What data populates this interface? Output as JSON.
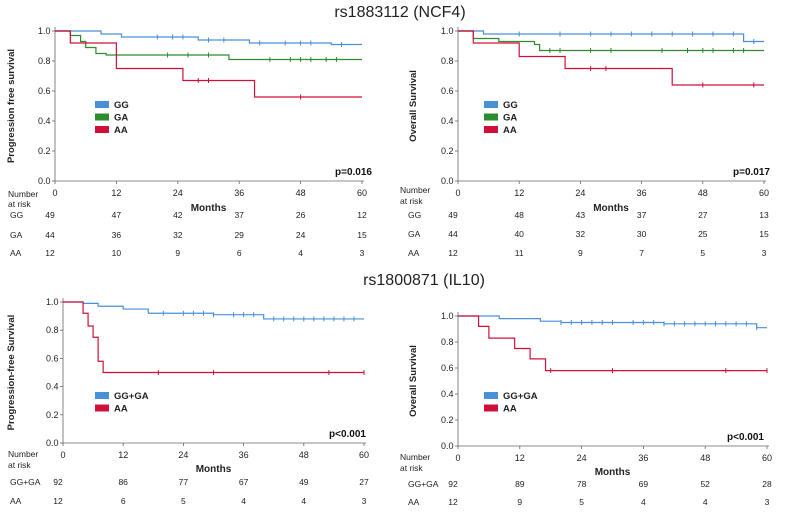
{
  "titles": {
    "top": "rs1883112 (NCF4)",
    "bottom": "rs1800871 (IL10)"
  },
  "colors": {
    "GG": "#4a90d9",
    "GA": "#2e8b2e",
    "AA": "#d0103a",
    "GGGA": "#4a90d9"
  },
  "chart_data": [
    {
      "type": "line",
      "panel": "top-left",
      "ylabel": "Progression free survival",
      "xlabel": "Months",
      "xticks": [
        0,
        12,
        24,
        36,
        48,
        60
      ],
      "yticks": [
        "0.0",
        "0.2",
        "0.4",
        "0.6",
        "0.8",
        "1.0"
      ],
      "xlim": [
        0,
        60
      ],
      "ylim": [
        0,
        1
      ],
      "p_value": "p=0.016",
      "risk_header": [
        "Number",
        "at risk"
      ],
      "series": [
        {
          "name": "GG",
          "color_key": "GG",
          "steps": [
            [
              0,
              1.0
            ],
            [
              9,
              0.98
            ],
            [
              13,
              0.96
            ],
            [
              28,
              0.94
            ],
            [
              38,
              0.92
            ],
            [
              54,
              0.91
            ],
            [
              60,
              0.91
            ]
          ],
          "censor": [
            20,
            23,
            25,
            30,
            33,
            40,
            45,
            48,
            50,
            56
          ]
        },
        {
          "name": "GA",
          "color_key": "GA",
          "steps": [
            [
              0,
              1.0
            ],
            [
              3,
              0.97
            ],
            [
              5,
              0.93
            ],
            [
              6,
              0.89
            ],
            [
              8,
              0.85
            ],
            [
              10,
              0.84
            ],
            [
              34,
              0.81
            ],
            [
              60,
              0.81
            ]
          ],
          "censor": [
            22,
            26,
            30,
            42,
            46,
            48,
            50,
            53,
            55
          ]
        },
        {
          "name": "AA",
          "color_key": "AA",
          "steps": [
            [
              0,
              1.0
            ],
            [
              3,
              0.92
            ],
            [
              12,
              0.75
            ],
            [
              25,
              0.67
            ],
            [
              39,
              0.56
            ],
            [
              60,
              0.56
            ]
          ],
          "censor": [
            28,
            30,
            48
          ]
        }
      ],
      "risk_table": [
        {
          "label": "GG",
          "values": [
            "49",
            "47",
            "42",
            "37",
            "26",
            "12"
          ]
        },
        {
          "label": "GA",
          "values": [
            "44",
            "36",
            "32",
            "29",
            "24",
            "15"
          ]
        },
        {
          "label": "AA",
          "values": [
            "12",
            "10",
            "9",
            "6",
            "4",
            "3"
          ]
        }
      ]
    },
    {
      "type": "line",
      "panel": "top-right",
      "ylabel": "Overall Survival",
      "xlabel": "Months",
      "xticks": [
        0,
        12,
        24,
        36,
        48,
        60
      ],
      "yticks": [
        "0.0",
        "0.2",
        "0.4",
        "0.6",
        "0.8",
        "1.0"
      ],
      "xlim": [
        0,
        60
      ],
      "ylim": [
        0,
        1
      ],
      "p_value": "p=0.017",
      "risk_header": [
        "Number",
        "at risk"
      ],
      "series": [
        {
          "name": "GG",
          "color_key": "GG",
          "steps": [
            [
              0,
              1.0
            ],
            [
              5,
              0.98
            ],
            [
              56,
              0.93
            ],
            [
              60,
              0.93
            ]
          ],
          "censor": [
            12,
            20,
            26,
            30,
            34,
            38,
            42,
            46,
            50,
            54,
            58
          ]
        },
        {
          "name": "GA",
          "color_key": "GA",
          "steps": [
            [
              0,
              1.0
            ],
            [
              3,
              0.95
            ],
            [
              8,
              0.93
            ],
            [
              15,
              0.91
            ],
            [
              16,
              0.87
            ],
            [
              60,
              0.87
            ]
          ],
          "censor": [
            18,
            20,
            26,
            30,
            40,
            45,
            48,
            50,
            54,
            56
          ]
        },
        {
          "name": "AA",
          "color_key": "AA",
          "steps": [
            [
              0,
              1.0
            ],
            [
              3,
              0.92
            ],
            [
              12,
              0.83
            ],
            [
              21,
              0.75
            ],
            [
              42,
              0.64
            ],
            [
              60,
              0.64
            ]
          ],
          "censor": [
            26,
            29,
            48,
            58
          ]
        }
      ],
      "risk_table": [
        {
          "label": "GG",
          "values": [
            "49",
            "48",
            "43",
            "37",
            "27",
            "13"
          ]
        },
        {
          "label": "GA",
          "values": [
            "44",
            "40",
            "32",
            "30",
            "25",
            "15"
          ]
        },
        {
          "label": "AA",
          "values": [
            "12",
            "11",
            "9",
            "7",
            "5",
            "3"
          ]
        }
      ]
    },
    {
      "type": "line",
      "panel": "bottom-left",
      "ylabel": "Progression-free Survival",
      "xlabel": "Months",
      "xticks": [
        0,
        12,
        24,
        36,
        48,
        60
      ],
      "yticks": [
        "0.0",
        "0.2",
        "0.4",
        "0.6",
        "0.8",
        "1.0"
      ],
      "xlim": [
        0,
        60
      ],
      "ylim": [
        0,
        1
      ],
      "p_value": "p<0.001",
      "risk_header": [
        "Number",
        "at risk"
      ],
      "series": [
        {
          "name": "GG+GA",
          "color_key": "GGGA",
          "steps": [
            [
              0,
              1.0
            ],
            [
              4,
              0.99
            ],
            [
              7,
              0.97
            ],
            [
              12,
              0.95
            ],
            [
              17,
              0.92
            ],
            [
              30,
              0.91
            ],
            [
              40,
              0.88
            ],
            [
              60,
              0.88
            ]
          ],
          "censor": [
            20,
            24,
            26,
            28,
            30,
            34,
            36,
            38,
            42,
            44,
            46,
            48,
            50,
            52,
            54,
            56,
            58
          ]
        },
        {
          "name": "AA",
          "color_key": "AA",
          "steps": [
            [
              0,
              1.0
            ],
            [
              4,
              0.92
            ],
            [
              5,
              0.83
            ],
            [
              6,
              0.75
            ],
            [
              7,
              0.58
            ],
            [
              8,
              0.5
            ],
            [
              60,
              0.5
            ]
          ],
          "censor": [
            19,
            30,
            53,
            60
          ]
        }
      ],
      "risk_table": [
        {
          "label": "GG+GA",
          "values": [
            "92",
            "86",
            "77",
            "67",
            "49",
            "27"
          ]
        },
        {
          "label": "AA",
          "values": [
            "12",
            "6",
            "5",
            "4",
            "4",
            "3"
          ]
        }
      ]
    },
    {
      "type": "line",
      "panel": "bottom-right",
      "ylabel": "Overall Survival",
      "xlabel": "Months",
      "xticks": [
        0,
        12,
        24,
        36,
        48,
        60
      ],
      "yticks": [
        "0.0",
        "0.2",
        "0.4",
        "0.6",
        "0.8",
        "1.0"
      ],
      "xlim": [
        0,
        60
      ],
      "ylim": [
        0,
        1
      ],
      "p_value": "p<0.001",
      "risk_header": [
        "Number",
        "at risk"
      ],
      "series": [
        {
          "name": "GG+GA",
          "color_key": "GGGA",
          "steps": [
            [
              0,
              1.0
            ],
            [
              8,
              0.98
            ],
            [
              16,
              0.96
            ],
            [
              20,
              0.95
            ],
            [
              40,
              0.94
            ],
            [
              58,
              0.91
            ],
            [
              60,
              0.91
            ]
          ],
          "censor": [
            20,
            22,
            24,
            26,
            28,
            30,
            34,
            36,
            38,
            40,
            42,
            44,
            46,
            48,
            50,
            52,
            54,
            56,
            58
          ]
        },
        {
          "name": "AA",
          "color_key": "AA",
          "steps": [
            [
              0,
              1.0
            ],
            [
              4,
              0.92
            ],
            [
              6,
              0.83
            ],
            [
              11,
              0.75
            ],
            [
              14,
              0.67
            ],
            [
              17,
              0.58
            ],
            [
              60,
              0.58
            ]
          ],
          "censor": [
            18,
            30,
            52,
            60
          ]
        }
      ],
      "risk_table": [
        {
          "label": "GG+GA",
          "values": [
            "92",
            "89",
            "78",
            "69",
            "52",
            "28"
          ]
        },
        {
          "label": "AA",
          "values": [
            "12",
            "9",
            "5",
            "4",
            "4",
            "3"
          ]
        }
      ]
    }
  ]
}
